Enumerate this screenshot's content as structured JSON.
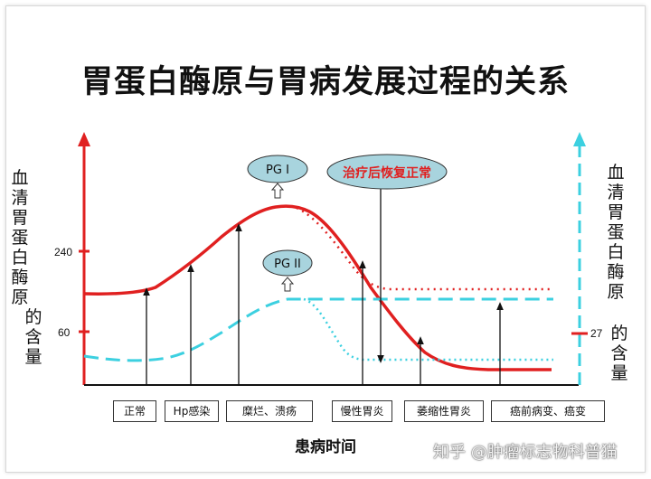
{
  "title": "胃蛋白酶原与胃病发展过程的关系",
  "y_left_label": "血清胃蛋白酶原",
  "y_left_label2": "的含量",
  "y_right_label": "血清胃蛋白酶原",
  "y_right_label2": "的含量",
  "tick_240": "240",
  "tick_60": "60",
  "tick_27": "27",
  "x_label": "患病时间",
  "bubble_pg1": "PG I",
  "bubble_pg2": "PG II",
  "bubble_recover": "治疗后恢复正常",
  "stages": [
    "正常",
    "Hp感染",
    "糜烂、溃疡",
    "慢性胃炎",
    "萎缩性胃炎",
    "癌前病变、癌变"
  ],
  "watermark": "知乎 @肿瘤标志物科普猫",
  "colors": {
    "pg1": "#e02020",
    "pg2": "#3cd0e0",
    "bubble": "#a8d4de",
    "axis_left": "#e02020",
    "axis_right": "#3cd0e0"
  }
}
